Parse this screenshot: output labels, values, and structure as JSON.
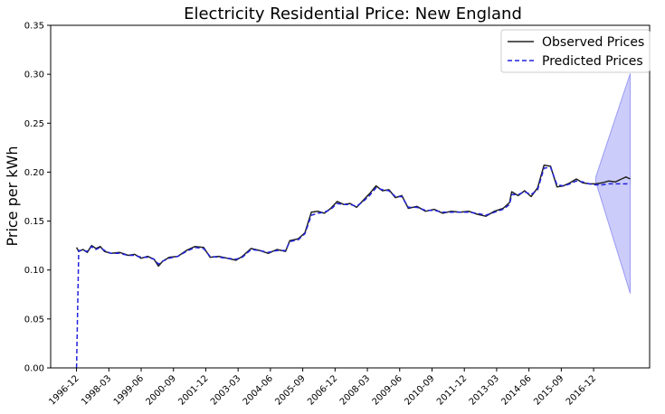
{
  "chart_data": {
    "type": "line",
    "title": "Electricity Residential Price: New England",
    "xlabel": "",
    "ylabel": "Price per kWh",
    "ylim": [
      0,
      0.35
    ],
    "yticks": [
      "0.00",
      "0.05",
      "0.10",
      "0.15",
      "0.20",
      "0.25",
      "0.30",
      "0.35"
    ],
    "xticks": [
      "1996-12",
      "1998-03",
      "1999-06",
      "2000-09",
      "2001-12",
      "2003-03",
      "2004-06",
      "2005-09",
      "2006-12",
      "2008-03",
      "2009-06",
      "2010-09",
      "2011-12",
      "2013-03",
      "2014-06",
      "2015-09",
      "2016-12"
    ],
    "x_range": [
      "1995-12",
      "2019-02"
    ],
    "grid": false,
    "legend_position": "top-right",
    "series": [
      {
        "name": "Observed Prices",
        "color": "#222222",
        "style": "solid",
        "points": [
          [
            "1996-12",
            0.123
          ],
          [
            "1997-01",
            0.119
          ],
          [
            "1997-03",
            0.121
          ],
          [
            "1997-05",
            0.118
          ],
          [
            "1997-07",
            0.125
          ],
          [
            "1997-09",
            0.122
          ],
          [
            "1997-11",
            0.124
          ],
          [
            "1998-01",
            0.119
          ],
          [
            "1998-04",
            0.117
          ],
          [
            "1998-08",
            0.118
          ],
          [
            "1998-12",
            0.115
          ],
          [
            "1999-03",
            0.116
          ],
          [
            "1999-06",
            0.112
          ],
          [
            "1999-09",
            0.114
          ],
          [
            "1999-12",
            0.111
          ],
          [
            "2000-02",
            0.104
          ],
          [
            "2000-04",
            0.109
          ],
          [
            "2000-07",
            0.113
          ],
          [
            "2000-11",
            0.114
          ],
          [
            "2001-03",
            0.12
          ],
          [
            "2001-07",
            0.124
          ],
          [
            "2001-11",
            0.123
          ],
          [
            "2002-02",
            0.113
          ],
          [
            "2002-06",
            0.114
          ],
          [
            "2002-10",
            0.112
          ],
          [
            "2003-02",
            0.11
          ],
          [
            "2003-05",
            0.114
          ],
          [
            "2003-09",
            0.122
          ],
          [
            "2004-01",
            0.12
          ],
          [
            "2004-05",
            0.117
          ],
          [
            "2004-09",
            0.121
          ],
          [
            "2005-01",
            0.119
          ],
          [
            "2005-03",
            0.13
          ],
          [
            "2005-07",
            0.132
          ],
          [
            "2005-10",
            0.138
          ],
          [
            "2006-01",
            0.159
          ],
          [
            "2006-04",
            0.16
          ],
          [
            "2006-07",
            0.158
          ],
          [
            "2006-10",
            0.163
          ],
          [
            "2007-01",
            0.17
          ],
          [
            "2007-04",
            0.167
          ],
          [
            "2007-07",
            0.168
          ],
          [
            "2007-10",
            0.164
          ],
          [
            "2008-01",
            0.171
          ],
          [
            "2008-04",
            0.178
          ],
          [
            "2008-07",
            0.186
          ],
          [
            "2008-10",
            0.181
          ],
          [
            "2009-01",
            0.182
          ],
          [
            "2009-04",
            0.174
          ],
          [
            "2009-07",
            0.176
          ],
          [
            "2009-10",
            0.163
          ],
          [
            "2010-02",
            0.165
          ],
          [
            "2010-06",
            0.16
          ],
          [
            "2010-10",
            0.162
          ],
          [
            "2011-02",
            0.158
          ],
          [
            "2011-06",
            0.16
          ],
          [
            "2011-10",
            0.159
          ],
          [
            "2012-02",
            0.16
          ],
          [
            "2012-06",
            0.157
          ],
          [
            "2012-10",
            0.155
          ],
          [
            "2013-02",
            0.16
          ],
          [
            "2013-06",
            0.163
          ],
          [
            "2013-09",
            0.169
          ],
          [
            "2013-10",
            0.18
          ],
          [
            "2014-01",
            0.176
          ],
          [
            "2014-04",
            0.181
          ],
          [
            "2014-07",
            0.175
          ],
          [
            "2014-10",
            0.184
          ],
          [
            "2015-01",
            0.207
          ],
          [
            "2015-04",
            0.206
          ],
          [
            "2015-07",
            0.185
          ],
          [
            "2015-10",
            0.186
          ],
          [
            "2016-01",
            0.189
          ],
          [
            "2016-04",
            0.193
          ],
          [
            "2016-07",
            0.189
          ],
          [
            "2016-10",
            0.188
          ],
          [
            "2017-01",
            0.188
          ],
          [
            "2017-04",
            0.189
          ],
          [
            "2017-07",
            0.191
          ],
          [
            "2017-10",
            0.19
          ],
          [
            "2018-01",
            0.193
          ],
          [
            "2018-03",
            0.195
          ],
          [
            "2018-05",
            0.193
          ]
        ]
      },
      {
        "name": "Predicted Prices",
        "color": "#2222dd",
        "style": "dashed",
        "points": [
          [
            "1996-12",
            0.0
          ],
          [
            "1997-01",
            0.12
          ],
          [
            "1997-03",
            0.12
          ],
          [
            "1997-05",
            0.119
          ],
          [
            "1997-07",
            0.124
          ],
          [
            "1997-09",
            0.121
          ],
          [
            "1997-11",
            0.123
          ],
          [
            "1998-01",
            0.12
          ],
          [
            "1998-04",
            0.117
          ],
          [
            "1998-08",
            0.117
          ],
          [
            "1998-12",
            0.115
          ],
          [
            "1999-03",
            0.115
          ],
          [
            "1999-06",
            0.113
          ],
          [
            "1999-09",
            0.113
          ],
          [
            "1999-12",
            0.111
          ],
          [
            "2000-02",
            0.106
          ],
          [
            "2000-04",
            0.109
          ],
          [
            "2000-07",
            0.112
          ],
          [
            "2000-11",
            0.114
          ],
          [
            "2001-03",
            0.119
          ],
          [
            "2001-07",
            0.123
          ],
          [
            "2001-11",
            0.122
          ],
          [
            "2002-02",
            0.114
          ],
          [
            "2002-06",
            0.113
          ],
          [
            "2002-10",
            0.112
          ],
          [
            "2003-02",
            0.111
          ],
          [
            "2003-05",
            0.113
          ],
          [
            "2003-09",
            0.121
          ],
          [
            "2004-01",
            0.12
          ],
          [
            "2004-05",
            0.118
          ],
          [
            "2004-09",
            0.12
          ],
          [
            "2005-01",
            0.12
          ],
          [
            "2005-03",
            0.129
          ],
          [
            "2005-07",
            0.131
          ],
          [
            "2005-10",
            0.137
          ],
          [
            "2006-01",
            0.156
          ],
          [
            "2006-04",
            0.158
          ],
          [
            "2006-07",
            0.159
          ],
          [
            "2006-10",
            0.162
          ],
          [
            "2007-01",
            0.168
          ],
          [
            "2007-04",
            0.167
          ],
          [
            "2007-07",
            0.167
          ],
          [
            "2007-10",
            0.165
          ],
          [
            "2008-01",
            0.17
          ],
          [
            "2008-04",
            0.176
          ],
          [
            "2008-07",
            0.184
          ],
          [
            "2008-10",
            0.182
          ],
          [
            "2009-01",
            0.181
          ],
          [
            "2009-04",
            0.175
          ],
          [
            "2009-07",
            0.175
          ],
          [
            "2009-10",
            0.164
          ],
          [
            "2010-02",
            0.164
          ],
          [
            "2010-06",
            0.161
          ],
          [
            "2010-10",
            0.161
          ],
          [
            "2011-02",
            0.159
          ],
          [
            "2011-06",
            0.159
          ],
          [
            "2011-10",
            0.159
          ],
          [
            "2012-02",
            0.159
          ],
          [
            "2012-06",
            0.158
          ],
          [
            "2012-10",
            0.156
          ],
          [
            "2013-02",
            0.159
          ],
          [
            "2013-06",
            0.162
          ],
          [
            "2013-09",
            0.167
          ],
          [
            "2013-10",
            0.177
          ],
          [
            "2014-01",
            0.177
          ],
          [
            "2014-04",
            0.18
          ],
          [
            "2014-07",
            0.177
          ],
          [
            "2014-10",
            0.182
          ],
          [
            "2015-01",
            0.204
          ],
          [
            "2015-04",
            0.205
          ],
          [
            "2015-07",
            0.187
          ],
          [
            "2015-10",
            0.186
          ],
          [
            "2016-01",
            0.188
          ],
          [
            "2016-04",
            0.191
          ],
          [
            "2016-07",
            0.19
          ],
          [
            "2016-10",
            0.188
          ],
          [
            "2017-01",
            0.187
          ],
          [
            "2017-04",
            0.187
          ],
          [
            "2017-07",
            0.188
          ],
          [
            "2017-10",
            0.188
          ],
          [
            "2018-01",
            0.188
          ],
          [
            "2018-03",
            0.188
          ],
          [
            "2018-05",
            0.188
          ]
        ]
      }
    ],
    "confidence_band": {
      "color": "#5555ee",
      "points": [
        [
          "2017-01",
          0.19,
          0.195
        ],
        [
          "2018-05",
          0.076,
          0.301
        ]
      ]
    }
  }
}
